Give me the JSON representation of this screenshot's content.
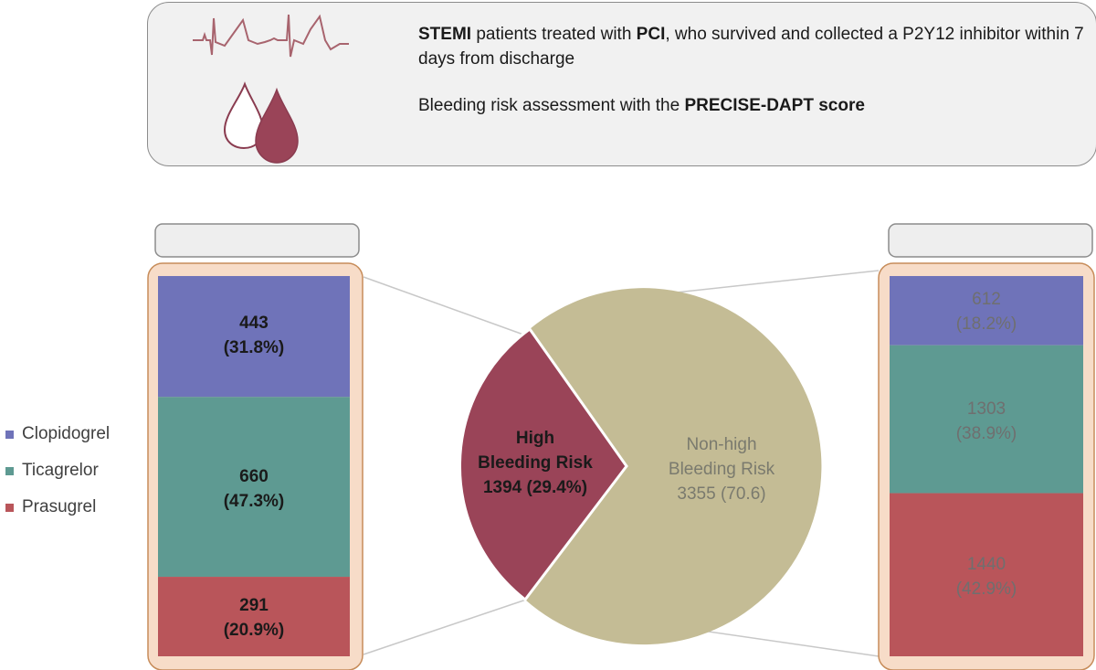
{
  "header": {
    "line1_bold_a": "STEMI",
    "line1_text_a": " patients treated with ",
    "line1_bold_b": "PCI",
    "line1_text_b": ", who survived and collected a P2Y12 inhibitor within 7 days from discharge",
    "line2_text": "Bleeding risk assessment with the ",
    "line2_bold": "PRECISE-DAPT score"
  },
  "icons": {
    "ecg": "ecg-waveform-icon",
    "blood": "blood-drops-icon"
  },
  "legend": [
    {
      "label": "Clopidogrel",
      "color": "#6f73b9"
    },
    {
      "label": "Ticagrelor",
      "color": "#5e9a92"
    },
    {
      "label": "Prasugrel",
      "color": "#b9555a"
    }
  ],
  "pie": {
    "high": {
      "line1": "High",
      "line2": "Bleeding Risk",
      "line3": "1394 (29.4%)",
      "color": "#9a4458"
    },
    "nonhigh": {
      "line1": "Non-high",
      "line2": "Bleeding Risk",
      "line3": "3355 (70.6)",
      "color": "#c4bc95"
    }
  },
  "left_bar": {
    "segments": [
      {
        "count": "443",
        "pct": "(31.8%)",
        "fraction": 0.318,
        "color": "#6f73b9"
      },
      {
        "count": "660",
        "pct": "(47.3%)",
        "fraction": 0.473,
        "color": "#5e9a92"
      },
      {
        "count": "291",
        "pct": "(20.9%)",
        "fraction": 0.209,
        "color": "#b9555a"
      }
    ]
  },
  "right_bar": {
    "segments": [
      {
        "count": "612",
        "pct": "(18.2%)",
        "fraction": 0.182,
        "color": "#6f73b9"
      },
      {
        "count": "1303",
        "pct": "(38.9%)",
        "fraction": 0.389,
        "color": "#5e9a92"
      },
      {
        "count": "1440",
        "pct": "(42.9%)",
        "fraction": 0.429,
        "color": "#b9555a"
      }
    ]
  }
}
